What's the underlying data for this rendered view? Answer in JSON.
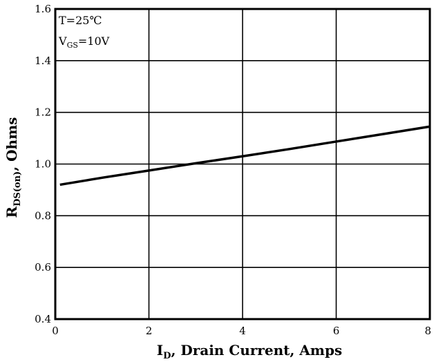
{
  "chart_data": {
    "type": "line",
    "title": "",
    "xlabel": {
      "main": "I",
      "sub": "D",
      "rest": ", Drain Current, Amps"
    },
    "ylabel": {
      "main": "R",
      "sub": "DS(on)",
      "rest": ", Ohms"
    },
    "xlim": [
      0,
      8
    ],
    "ylim": [
      0.4,
      1.6
    ],
    "xticks": [
      0,
      2,
      4,
      6,
      8
    ],
    "xtick_labels": [
      "0",
      "2",
      "4",
      "6",
      "8"
    ],
    "yticks": [
      0.4,
      0.6,
      0.8,
      1.0,
      1.2,
      1.4,
      1.6
    ],
    "ytick_labels": [
      "0.4",
      "0.6",
      "0.8",
      "1.0",
      "1.2",
      "1.4",
      "1.6"
    ],
    "grid": true,
    "annotations": {
      "line1": "T=25℃",
      "line2": {
        "main": "V",
        "sub": "GS",
        "rest": "=10V"
      }
    },
    "series": [
      {
        "x": [
          0.1,
          1,
          2,
          3,
          4,
          5,
          6,
          7,
          8
        ],
        "y": [
          0.92,
          0.947,
          0.975,
          1.003,
          1.03,
          1.058,
          1.087,
          1.116,
          1.145
        ]
      }
    ]
  }
}
